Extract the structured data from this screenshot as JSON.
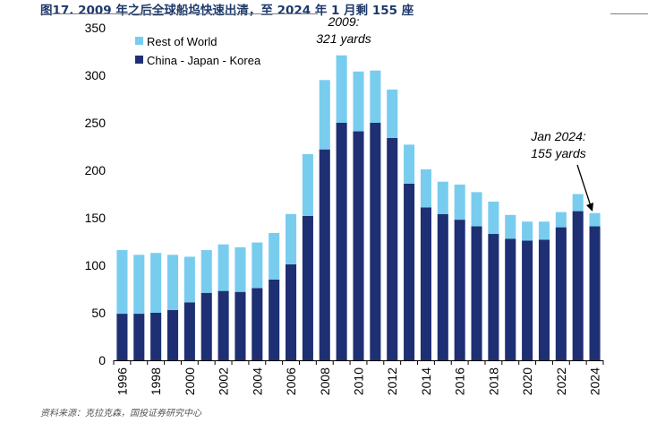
{
  "header": {
    "title": "图17. 2009 年之后全球船坞快速出清，至 2024 年 1 月剩 155 座"
  },
  "footer": {
    "source": "资料来源：克拉克森，国投证券研究中心"
  },
  "colors": {
    "cjk": "#1e2f73",
    "row": "#78cdef",
    "rule": "#7f7f7f"
  },
  "chart_data": {
    "type": "bar",
    "stacked": true,
    "title": "",
    "xlabel": "",
    "ylabel": "",
    "ylim": [
      0,
      350
    ],
    "yticks": [
      "0",
      "50",
      "100",
      "150",
      "200",
      "250",
      "300",
      "350"
    ],
    "categories": [
      "1996",
      "1997",
      "1998",
      "1999",
      "2000",
      "2001",
      "2002",
      "2003",
      "2004",
      "2005",
      "2006",
      "2007",
      "2008",
      "2009",
      "2010",
      "2011",
      "2012",
      "2013",
      "2014",
      "2015",
      "2016",
      "2017",
      "2018",
      "2019",
      "2020",
      "2021",
      "2022",
      "2023",
      "Jan 2024"
    ],
    "xtick_labels": [
      "1996",
      "",
      "1998",
      "",
      "2000",
      "",
      "2002",
      "",
      "2004",
      "",
      "2006",
      "",
      "2008",
      "",
      "2010",
      "",
      "2012",
      "",
      "2014",
      "",
      "2016",
      "",
      "2018",
      "",
      "2020",
      "",
      "2022",
      "",
      "2024"
    ],
    "series": [
      {
        "name": "China - Japan - Korea",
        "values": [
          49,
          49,
          50,
          53,
          61,
          71,
          73,
          72,
          76,
          85,
          101,
          152,
          222,
          250,
          241,
          250,
          234,
          186,
          161,
          154,
          148,
          141,
          133,
          128,
          126,
          127,
          140,
          157,
          141
        ]
      },
      {
        "name": "Rest of World",
        "values": [
          67,
          62,
          63,
          58,
          48,
          45,
          49,
          47,
          48,
          49,
          53,
          65,
          73,
          71,
          63,
          55,
          51,
          41,
          40,
          34,
          37,
          36,
          34,
          25,
          20,
          19,
          16,
          18,
          14
        ]
      }
    ],
    "legend": [
      {
        "name": "Rest of World"
      },
      {
        "name": "China - Japan - Korea"
      }
    ],
    "legend_position": "top-left",
    "annotations": {
      "peak_line1": "2009:",
      "peak_line2": "321 yards",
      "latest_line1": "Jan 2024:",
      "latest_line2": "155 yards"
    }
  }
}
